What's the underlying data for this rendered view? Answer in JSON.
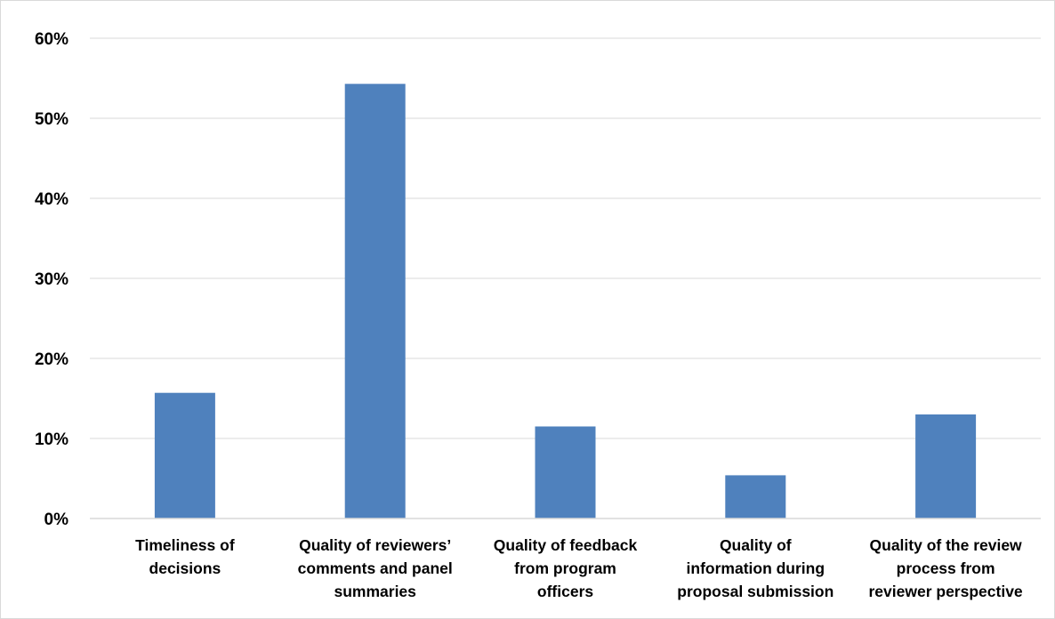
{
  "chart_data": {
    "type": "bar",
    "title": "",
    "xlabel": "",
    "ylabel": "",
    "categories": [
      [
        "Timeliness of",
        "decisions"
      ],
      [
        "Quality of reviewers’",
        "comments and panel",
        "summaries"
      ],
      [
        "Quality of feedback",
        "from program",
        "officers"
      ],
      [
        "Quality of",
        "information during",
        "proposal submission"
      ],
      [
        "Quality of the review",
        "process from",
        "reviewer perspective"
      ]
    ],
    "values": [
      0.157,
      0.543,
      0.115,
      0.054,
      0.13
    ],
    "ylim": [
      0,
      0.6
    ],
    "yticks": [
      0,
      0.1,
      0.2,
      0.3,
      0.4,
      0.5,
      0.6
    ],
    "ytick_labels": [
      "0%",
      "10%",
      "20%",
      "30%",
      "40%",
      "50%",
      "60%"
    ],
    "grid": true,
    "legend": "none",
    "bar_color": "#4f81bd",
    "grid_color": "#d9d9d9"
  }
}
